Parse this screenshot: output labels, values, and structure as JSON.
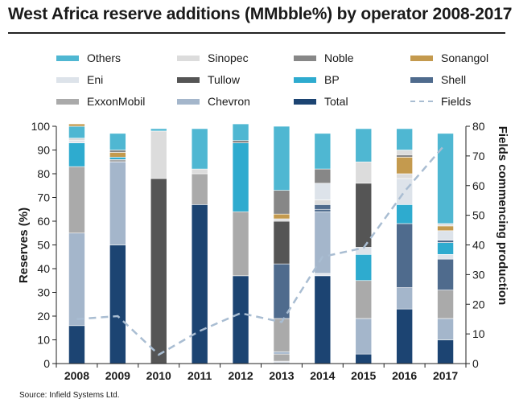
{
  "title": "West Africa reserve additions (MMbble%) by operator 2008-2017",
  "source": "Source: Infield Systems Ltd.",
  "chart_data": {
    "type": "bar",
    "stacked": true,
    "categories": [
      "2008",
      "2009",
      "2010",
      "2011",
      "2012",
      "2013",
      "2014",
      "2015",
      "2016",
      "2017"
    ],
    "ylabel": "Reserves (%)",
    "ylim": [
      0,
      100
    ],
    "yticks": [
      0,
      10,
      20,
      30,
      40,
      50,
      60,
      70,
      80,
      90,
      100
    ],
    "y2label": "Fields commencing production",
    "y2lim": [
      0,
      80
    ],
    "y2ticks": [
      0,
      10,
      20,
      30,
      40,
      50,
      60,
      70,
      80
    ],
    "legend": [
      {
        "name": "Others",
        "color": "#4fb7d2"
      },
      {
        "name": "Sinopec",
        "color": "#dcdcdc"
      },
      {
        "name": "Noble",
        "color": "#878787"
      },
      {
        "name": "Sonangol",
        "color": "#c49a4e"
      },
      {
        "name": "Eni",
        "color": "#dde3ea"
      },
      {
        "name": "Tullow",
        "color": "#555555"
      },
      {
        "name": "BP",
        "color": "#2eabcf"
      },
      {
        "name": "Shell",
        "color": "#4f6b8d"
      },
      {
        "name": "ExxonMobil",
        "color": "#aaaaaa"
      },
      {
        "name": "Chevron",
        "color": "#a4b6cb"
      },
      {
        "name": "Total",
        "color": "#1c4472"
      },
      {
        "name": "Fields",
        "color": "#a9bdd2",
        "style": "dashed"
      }
    ],
    "series": [
      {
        "name": "Total",
        "color": "#1c4472",
        "values": [
          16,
          50,
          0,
          67,
          37,
          0,
          37,
          4,
          23,
          10
        ]
      },
      {
        "name": "Eni",
        "color": "#dde3ea",
        "values": [
          0,
          0,
          0,
          0,
          0,
          1,
          1,
          0,
          0,
          0
        ]
      },
      {
        "name": "ExxonMobil",
        "color": "#aaaaaa",
        "values": [
          0,
          0,
          0,
          0,
          0,
          3,
          0,
          0,
          0,
          0
        ]
      },
      {
        "name": "Chevron",
        "color": "#a4b6cb",
        "values": [
          39,
          35,
          0,
          0,
          0,
          1,
          26,
          15,
          9,
          9
        ]
      },
      {
        "name": "ExxonMobil",
        "color": "#aaaaaa",
        "values": [
          0,
          0,
          0,
          0,
          0,
          14,
          0,
          16,
          0,
          12
        ]
      },
      {
        "name": "Shell",
        "color": "#4f6b8d",
        "values": [
          0,
          0,
          0,
          0,
          0,
          23,
          1,
          0,
          27,
          13
        ]
      },
      {
        "name": "Eni",
        "color": "#dde3ea",
        "values": [
          0,
          0,
          0,
          0,
          0,
          0,
          0,
          0,
          0,
          2
        ]
      },
      {
        "name": "Tullow",
        "color": "#555555",
        "values": [
          0,
          0,
          78,
          0,
          0,
          18,
          0,
          0,
          0,
          0
        ]
      },
      {
        "name": "ExxonMobil",
        "color": "#aaaaaa",
        "values": [
          28,
          1,
          0,
          13,
          27,
          0,
          0,
          0,
          0,
          0
        ]
      },
      {
        "name": "BP",
        "color": "#2eabcf",
        "values": [
          10,
          1,
          0,
          0,
          29,
          0,
          0,
          11,
          8,
          5
        ]
      },
      {
        "name": "Shell",
        "color": "#4f6b8d",
        "values": [
          0,
          0,
          0,
          0,
          0,
          0,
          2,
          0,
          0,
          1
        ]
      },
      {
        "name": "Sinopec",
        "color": "#dcdcdc",
        "values": [
          0,
          0,
          0,
          0,
          0,
          1,
          2,
          0,
          0,
          0
        ]
      },
      {
        "name": "Eni",
        "color": "#dde3ea",
        "values": [
          1,
          0,
          0,
          0,
          0,
          0,
          7,
          3,
          11,
          4
        ]
      },
      {
        "name": "Tullow",
        "color": "#555555",
        "values": [
          0,
          0,
          0,
          0,
          0,
          0,
          0,
          27,
          0,
          0
        ]
      },
      {
        "name": "Sinopec",
        "color": "#dcdcdc",
        "values": [
          0,
          0,
          20,
          2,
          0,
          0,
          0,
          9,
          2,
          0
        ]
      },
      {
        "name": "Sonangol",
        "color": "#c49a4e",
        "values": [
          0,
          2,
          0,
          0,
          0,
          2,
          0,
          0,
          7,
          2
        ]
      },
      {
        "name": "Noble",
        "color": "#878787",
        "values": [
          0,
          1,
          0,
          0,
          1,
          10,
          6,
          0,
          1,
          0
        ]
      },
      {
        "name": "Sinopec",
        "color": "#dcdcdc",
        "values": [
          1,
          0,
          0,
          0,
          0,
          0,
          0,
          0,
          2,
          1
        ]
      },
      {
        "name": "Others",
        "color": "#4fb7d2",
        "values": [
          5,
          7,
          1,
          17,
          7,
          27,
          15,
          14,
          9,
          38
        ]
      },
      {
        "name": "Sonangol",
        "color": "#c49a4e",
        "values": [
          1,
          0,
          0,
          0,
          0,
          0,
          0,
          0,
          0,
          0
        ]
      }
    ],
    "line": {
      "name": "Fields",
      "color": "#a9bdd2",
      "style": "dashed",
      "axis": "right",
      "values": [
        15,
        16,
        3,
        11,
        17,
        14,
        36,
        39,
        58,
        74
      ]
    }
  }
}
